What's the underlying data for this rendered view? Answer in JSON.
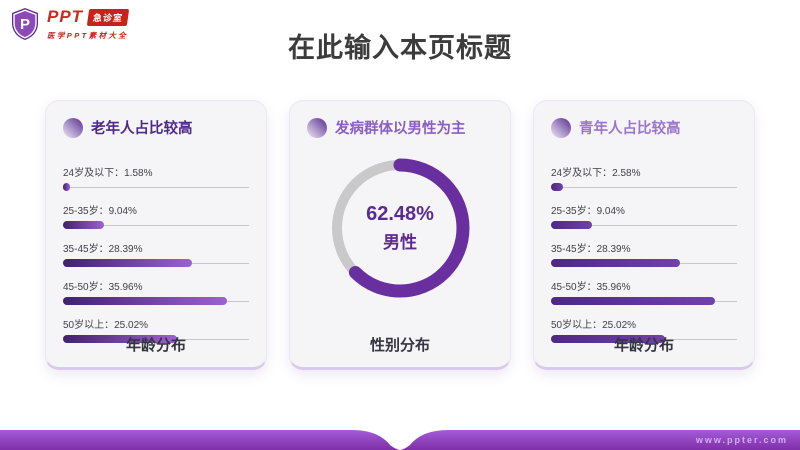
{
  "logo": {
    "brand": "PPT",
    "badge": "急诊室",
    "subtitle": "医学PPT素材大全",
    "shield_letter": "P"
  },
  "header": {
    "title": "在此输入本页标题"
  },
  "cards": [
    {
      "title": "老年人占比较高",
      "bottom_label": "年龄分布",
      "rows": [
        {
          "text": "24岁及以下：1.58%",
          "value": 1.58
        },
        {
          "text": "25-35岁：9.04%",
          "value": 9.04
        },
        {
          "text": "35-45岁：28.39%",
          "value": 28.39
        },
        {
          "text": "45-50岁：35.96%",
          "value": 35.96
        },
        {
          "text": "50岁以上：25.02%",
          "value": 25.02
        }
      ]
    },
    {
      "title": "发病群体以男性为主",
      "bottom_label": "性别分布",
      "donut": {
        "percent": 62.48,
        "center_value": "62.48%",
        "center_label": "男性"
      }
    },
    {
      "title": "青年人占比较高",
      "bottom_label": "年龄分布",
      "rows": [
        {
          "text": "24岁及以下：2.58%",
          "value": 2.58
        },
        {
          "text": "25-35岁：9.04%",
          "value": 9.04
        },
        {
          "text": "35-45岁：28.39%",
          "value": 28.39
        },
        {
          "text": "45-50岁：35.96%",
          "value": 35.96
        },
        {
          "text": "50岁以上：25.02%",
          "value": 25.02
        }
      ]
    }
  ],
  "footer": {
    "url": "www.ppter.com"
  },
  "colors": {
    "accent_purple": "#6A2F9E",
    "dark_purple_text": "#4D2A86",
    "mid_purple_text": "#8B5EC3",
    "light_purple_text": "#9B75CF",
    "brand_red": "#C8221C",
    "donut_track_gray": "#C9C9C9",
    "footer_gradient_top": "#A55CD8",
    "footer_gradient_bottom": "#7E2EA8",
    "card_bg": "#F5F4F7"
  },
  "chart_data": [
    {
      "type": "bar",
      "title": "老年人占比较高",
      "categories": [
        "24岁及以下",
        "25-35岁",
        "35-45岁",
        "45-50岁",
        "50岁以上"
      ],
      "values": [
        1.58,
        9.04,
        28.39,
        35.96,
        25.02
      ],
      "xlabel": "年龄分布",
      "ylabel": "",
      "xlim": [
        0,
        40
      ],
      "orientation": "horizontal",
      "grid": false,
      "legend": "none"
    },
    {
      "type": "pie",
      "subtype": "donut",
      "title": "发病群体以男性为主",
      "labels": [
        "男性",
        "其他"
      ],
      "values": [
        62.48,
        37.52
      ],
      "center_text": "62.48% 男性",
      "xlabel": "性别分布",
      "legend": "none"
    },
    {
      "type": "bar",
      "title": "青年人占比较高",
      "categories": [
        "24岁及以下",
        "25-35岁",
        "35-45岁",
        "45-50岁",
        "50岁以上"
      ],
      "values": [
        2.58,
        9.04,
        28.39,
        35.96,
        25.02
      ],
      "xlabel": "年龄分布",
      "ylabel": "",
      "xlim": [
        0,
        40
      ],
      "orientation": "horizontal",
      "grid": false,
      "legend": "none"
    }
  ]
}
